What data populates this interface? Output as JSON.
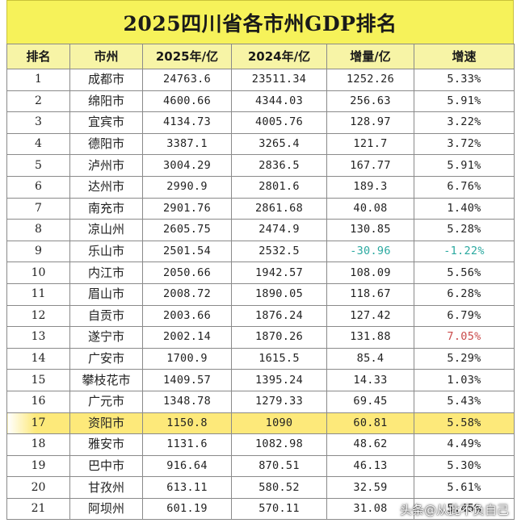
{
  "title": "2025四川省各市州GDP排名",
  "headers": [
    "排名",
    "市州",
    "2025年/亿",
    "2024年/亿",
    "增量/亿",
    "增速"
  ],
  "rows": [
    {
      "rank": "1",
      "city": "成都市",
      "gdp2025": "24763.6",
      "gdp2024": "23511.34",
      "increase": "1252.26",
      "rate": "5.33%"
    },
    {
      "rank": "2",
      "city": "绵阳市",
      "gdp2025": "4600.66",
      "gdp2024": "4344.03",
      "increase": "256.63",
      "rate": "5.91%"
    },
    {
      "rank": "3",
      "city": "宜宾市",
      "gdp2025": "4134.73",
      "gdp2024": "4005.76",
      "increase": "128.97",
      "rate": "3.22%"
    },
    {
      "rank": "4",
      "city": "德阳市",
      "gdp2025": "3387.1",
      "gdp2024": "3265.4",
      "increase": "121.7",
      "rate": "3.72%"
    },
    {
      "rank": "5",
      "city": "泸州市",
      "gdp2025": "3004.29",
      "gdp2024": "2836.5",
      "increase": "167.77",
      "rate": "5.91%"
    },
    {
      "rank": "6",
      "city": "达州市",
      "gdp2025": "2990.9",
      "gdp2024": "2801.6",
      "increase": "189.3",
      "rate": "6.76%"
    },
    {
      "rank": "7",
      "city": "南充市",
      "gdp2025": "2901.76",
      "gdp2024": "2861.68",
      "increase": "40.08",
      "rate": "1.40%"
    },
    {
      "rank": "8",
      "city": "凉山州",
      "gdp2025": "2605.75",
      "gdp2024": "2474.9",
      "increase": "130.85",
      "rate": "5.28%"
    },
    {
      "rank": "9",
      "city": "乐山市",
      "gdp2025": "2501.54",
      "gdp2024": "2532.5",
      "increase": "-30.96",
      "rate": "-1.22%",
      "negative": true
    },
    {
      "rank": "10",
      "city": "内江市",
      "gdp2025": "2050.66",
      "gdp2024": "1942.57",
      "increase": "108.09",
      "rate": "5.56%"
    },
    {
      "rank": "11",
      "city": "眉山市",
      "gdp2025": "2008.72",
      "gdp2024": "1890.05",
      "increase": "118.67",
      "rate": "6.28%"
    },
    {
      "rank": "12",
      "city": "自贡市",
      "gdp2025": "2003.66",
      "gdp2024": "1876.24",
      "increase": "127.42",
      "rate": "6.79%"
    },
    {
      "rank": "13",
      "city": "遂宁市",
      "gdp2025": "2002.14",
      "gdp2024": "1870.26",
      "increase": "131.88",
      "rate": "7.05%",
      "top_rate": true
    },
    {
      "rank": "14",
      "city": "广安市",
      "gdp2025": "1700.9",
      "gdp2024": "1615.5",
      "increase": "85.4",
      "rate": "5.29%"
    },
    {
      "rank": "15",
      "city": "攀枝花市",
      "gdp2025": "1409.57",
      "gdp2024": "1395.24",
      "increase": "14.33",
      "rate": "1.03%"
    },
    {
      "rank": "16",
      "city": "广元市",
      "gdp2025": "1348.78",
      "gdp2024": "1279.33",
      "increase": "69.45",
      "rate": "5.43%"
    },
    {
      "rank": "17",
      "city": "资阳市",
      "gdp2025": "1150.8",
      "gdp2024": "1090",
      "increase": "60.81",
      "rate": "5.58%",
      "highlight": true
    },
    {
      "rank": "18",
      "city": "雅安市",
      "gdp2025": "1131.6",
      "gdp2024": "1082.98",
      "increase": "48.62",
      "rate": "4.49%"
    },
    {
      "rank": "19",
      "city": "巴中市",
      "gdp2025": "916.64",
      "gdp2024": "870.51",
      "increase": "46.13",
      "rate": "5.30%"
    },
    {
      "rank": "20",
      "city": "甘孜州",
      "gdp2025": "613.11",
      "gdp2024": "580.52",
      "increase": "32.59",
      "rate": "5.61%"
    },
    {
      "rank": "21",
      "city": "阿坝州",
      "gdp2025": "601.19",
      "gdp2024": "570.11",
      "increase": "31.08",
      "rate": "5.45%"
    }
  ],
  "colors": {
    "title_bg": "#f6f25a",
    "header_bg": "#f7f4a6",
    "highlight": "#fde97a",
    "negative_text": "#2ba9a0",
    "top_rate_text": "#c94a4a"
  },
  "watermark": "头条@从此不负自己"
}
